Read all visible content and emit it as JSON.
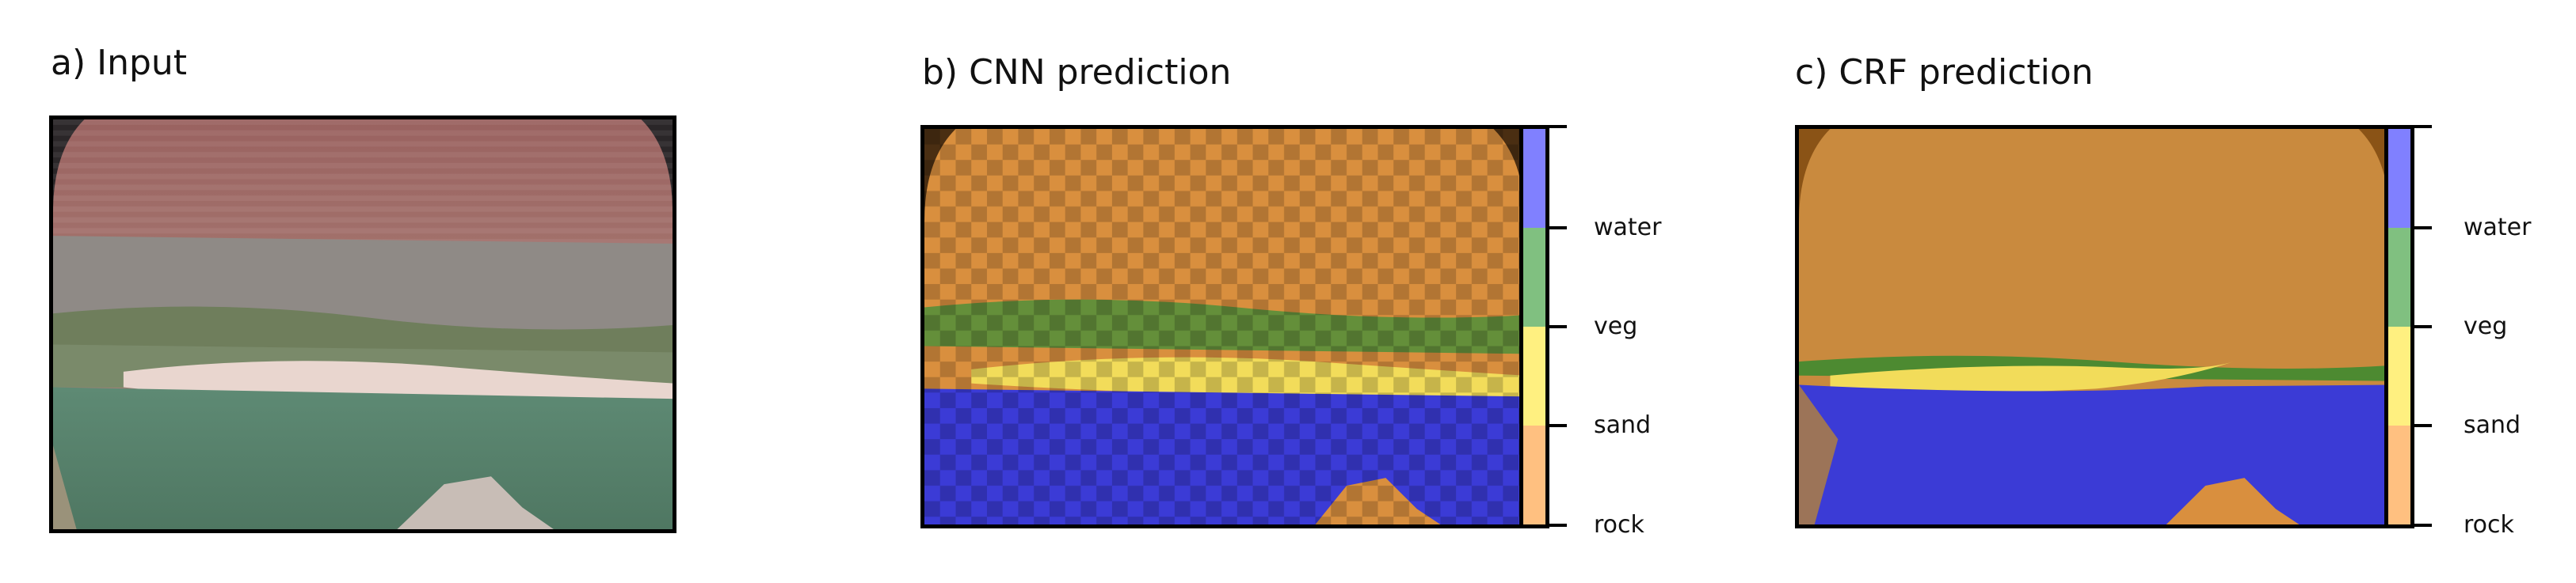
{
  "panels": {
    "input": {
      "title": "a) Input"
    },
    "cnn": {
      "title": "b) CNN prediction"
    },
    "crf": {
      "title": "c) CRF prediction"
    }
  },
  "classes": [
    {
      "name": "rock",
      "color": "#ffc080"
    },
    {
      "name": "sand",
      "color": "#fff080"
    },
    {
      "name": "veg",
      "color": "#80c080"
    },
    {
      "name": "water",
      "color": "#8080ff"
    }
  ],
  "overlay_colors": {
    "rock": "#d98f3e",
    "sand": "#f2dc5a",
    "veg": "#3f9a3f",
    "water": "#3b3bd6"
  }
}
